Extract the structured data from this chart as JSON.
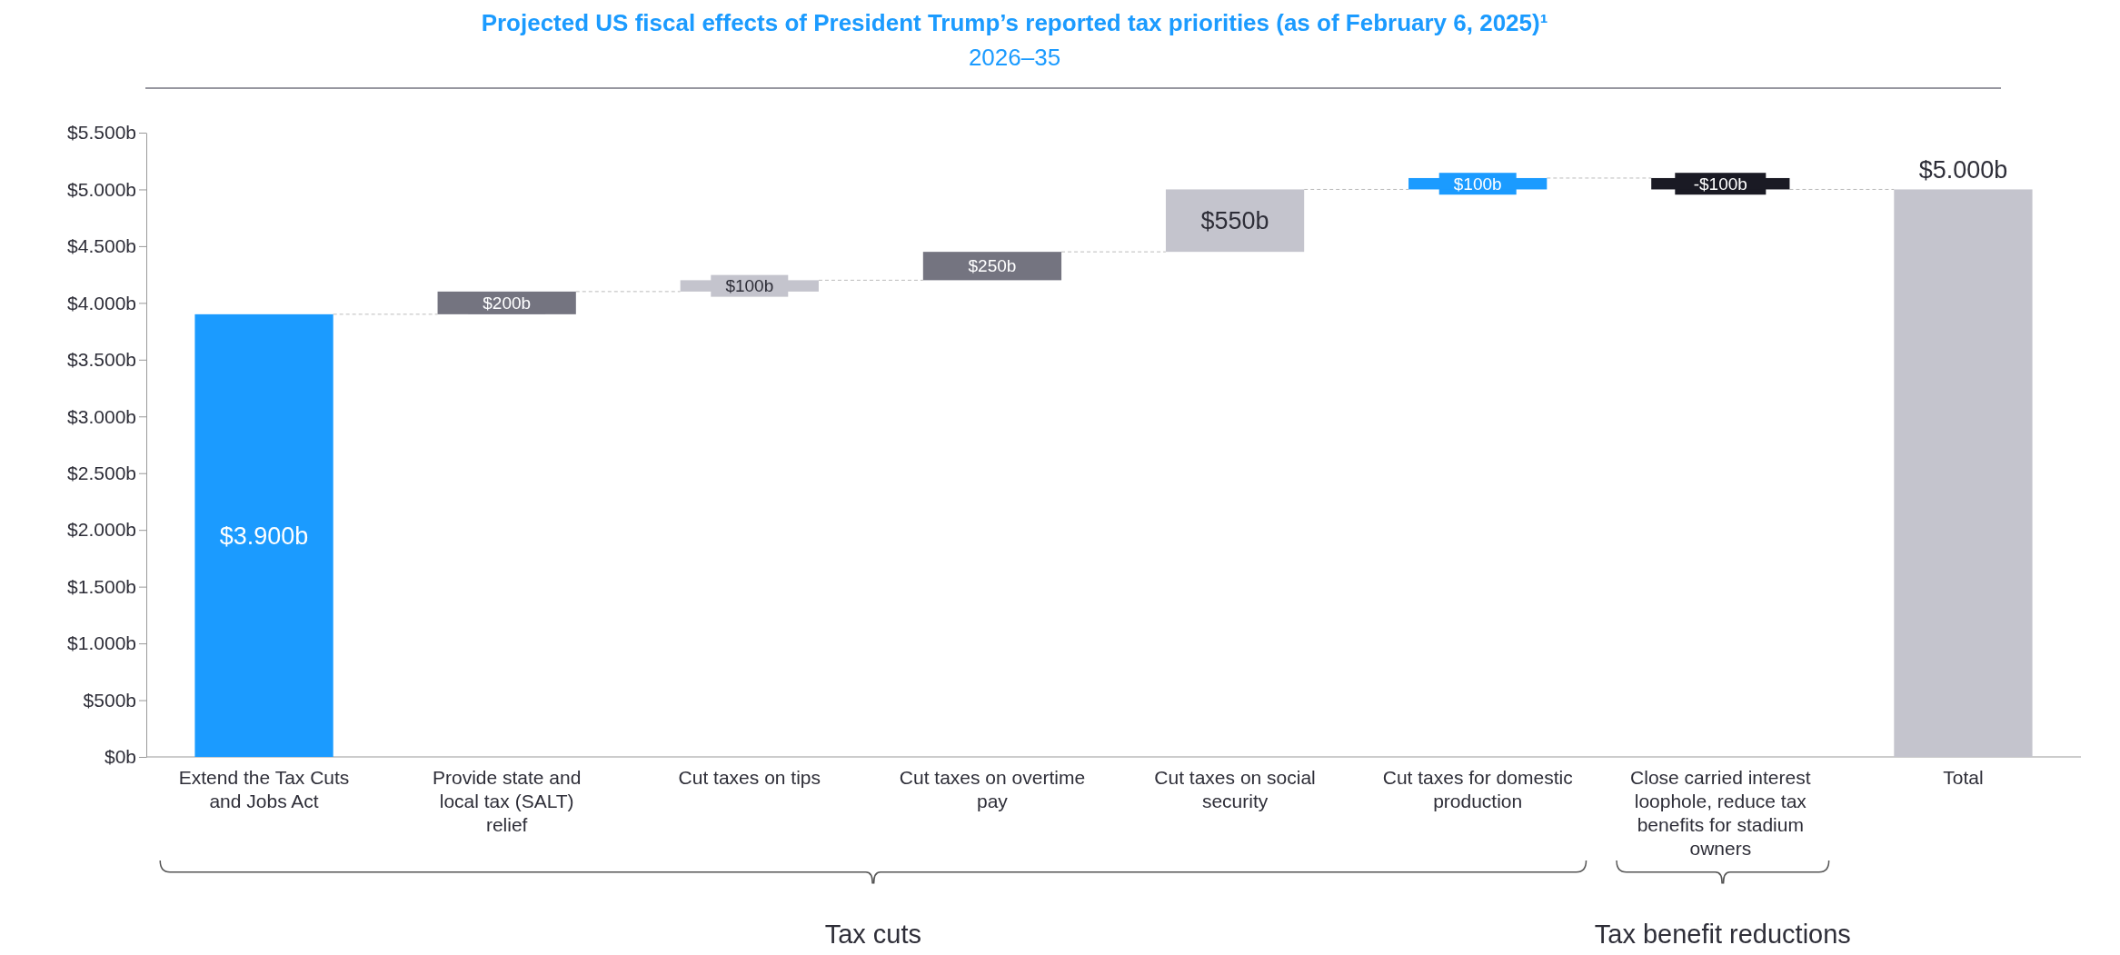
{
  "chart_data": {
    "type": "bar",
    "title": "Projected US fiscal effects of President Trump’s reported tax priorities (as of February 6, 2025)¹",
    "subtitle": "2026–35",
    "categories": [
      "Extend the Tax Cuts and Jobs Act",
      "Provide state and local tax (SALT) relief",
      "Cut taxes on tips",
      "Cut taxes on overtime pay",
      "Cut taxes on social security",
      "Cut taxes for domestic production",
      "Close carried interest loophole, reduce tax benefits for stadium owners",
      "Total"
    ],
    "values": [
      3900,
      200,
      100,
      250,
      550,
      100,
      -100,
      5000
    ],
    "base": [
      0,
      3900,
      4100,
      4200,
      4450,
      5000,
      5100,
      0
    ],
    "colors": [
      "#1b9bff",
      "#747480",
      "#c4c4cd",
      "#747480",
      "#c4c4cd",
      "#1b9bff",
      "#1a1a24",
      "#c4c4cd"
    ],
    "value_labels": [
      "$3.900b",
      "$200b",
      "$100b",
      "$250b",
      "$550b",
      "$100b",
      "-$100b",
      "$5.000b"
    ],
    "ylim": [
      0,
      5500
    ],
    "yticks": [
      {
        "value": 0,
        "label": "$0b"
      },
      {
        "value": 500,
        "label": "$500b"
      },
      {
        "value": 1000,
        "label": "$1.000b"
      },
      {
        "value": 1500,
        "label": "$1.500b"
      },
      {
        "value": 2000,
        "label": "$2.000b"
      },
      {
        "value": 2500,
        "label": "$2.500b"
      },
      {
        "value": 3000,
        "label": "$3.000b"
      },
      {
        "value": 3500,
        "label": "$3.500b"
      },
      {
        "value": 4000,
        "label": "$4.000b"
      },
      {
        "value": 4500,
        "label": "$4.500b"
      },
      {
        "value": 5000,
        "label": "$5.000b"
      },
      {
        "value": 5500,
        "label": "$5.500b"
      }
    ],
    "annotations": [
      "Tax cuts",
      "Tax benefit reductions"
    ]
  }
}
